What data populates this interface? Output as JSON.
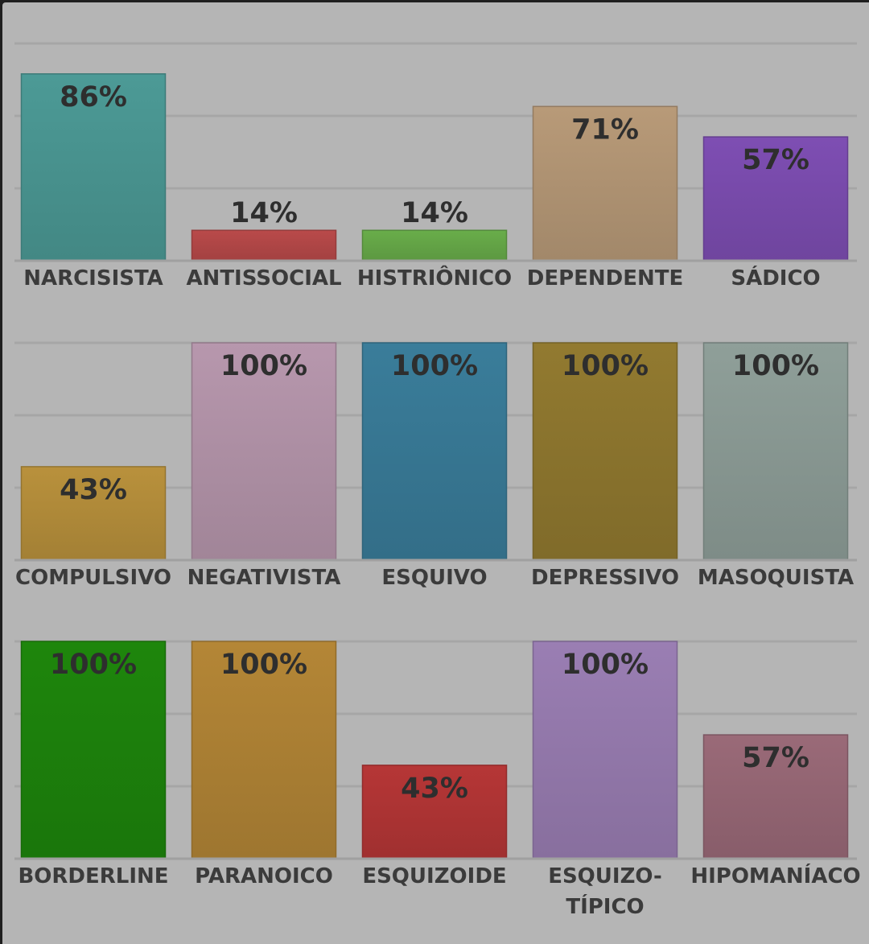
{
  "chart_data": [
    {
      "type": "bar",
      "categories": [
        "NARCISISTA",
        "ANTISSOCIAL",
        "HISTRIÔNICO",
        "DEPENDENTE",
        "SÁDICO"
      ],
      "values": [
        86,
        14,
        14,
        71,
        57
      ],
      "value_labels": [
        "86%",
        "14%",
        "14%",
        "71%",
        "57%"
      ],
      "colors": [
        "#4c9a96",
        "#b94a4a",
        "#69ad4a",
        "#b89a78",
        "#7e4eb3"
      ],
      "ylim": [
        0,
        100
      ],
      "grid": true
    },
    {
      "type": "bar",
      "categories": [
        "COMPULSIVO",
        "NEGATIVISTA",
        "ESQUIVO",
        "DEPRESSIVO",
        "MASOQUISTA"
      ],
      "values": [
        43,
        100,
        100,
        100,
        100
      ],
      "value_labels": [
        "43%",
        "100%",
        "100%",
        "100%",
        "100%"
      ],
      "colors": [
        "#b9913c",
        "#b797ad",
        "#3a7d9a",
        "#927a30",
        "#8f9f99"
      ],
      "ylim": [
        0,
        100
      ],
      "grid": true
    },
    {
      "type": "bar",
      "categories": [
        "BORDERLINE",
        "PARANOICO",
        "ESQUIZOIDE",
        "ESQUIZO-\nTÍPICO",
        "HIPOMANÍACO"
      ],
      "values": [
        100,
        100,
        43,
        100,
        57
      ],
      "value_labels": [
        "100%",
        "100%",
        "43%",
        "100%",
        "57%"
      ],
      "colors": [
        "#1e860c",
        "#b48636",
        "#b63636",
        "#9a7eb3",
        "#9a6a78"
      ],
      "ylim": [
        0,
        100
      ],
      "grid": true
    }
  ]
}
